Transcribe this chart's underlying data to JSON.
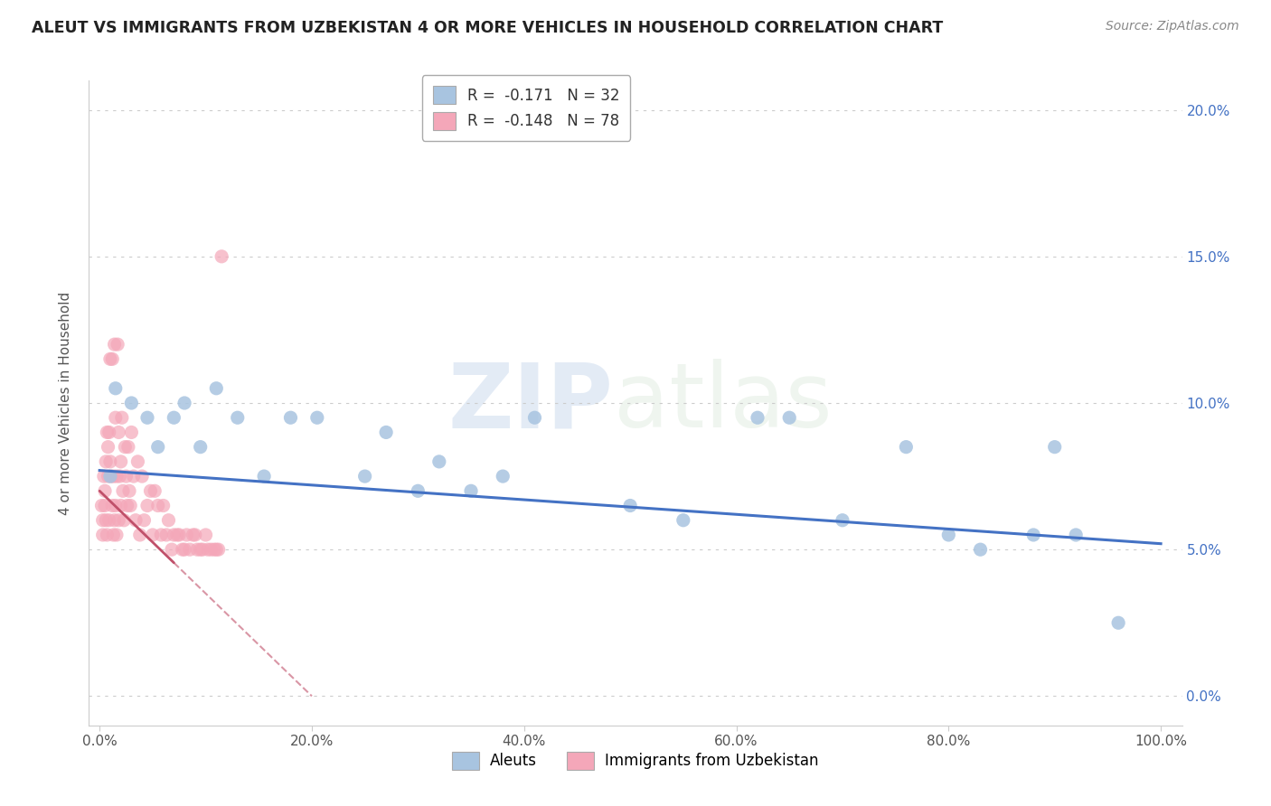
{
  "title": "ALEUT VS IMMIGRANTS FROM UZBEKISTAN 4 OR MORE VEHICLES IN HOUSEHOLD CORRELATION CHART",
  "source": "Source: ZipAtlas.com",
  "ylabel": "4 or more Vehicles in Household",
  "xlim": [
    0,
    100
  ],
  "ylim": [
    0,
    20
  ],
  "legend_label1": "R =  -0.171   N = 32",
  "legend_label2": "R =  -0.148   N = 78",
  "color_aleut": "#a8c4e0",
  "color_uzbek": "#f4a7b9",
  "trendline_aleut": "#4472c4",
  "trendline_uzbek": "#c0506a",
  "watermark_zip": "ZIP",
  "watermark_atlas": "atlas",
  "legend_items": [
    "Aleuts",
    "Immigrants from Uzbekistan"
  ],
  "aleut_x": [
    1.0,
    1.5,
    3.0,
    4.5,
    5.5,
    7.0,
    8.0,
    9.5,
    11.0,
    13.0,
    15.5,
    18.0,
    20.5,
    25.0,
    27.0,
    30.0,
    32.0,
    35.0,
    38.0,
    41.0,
    50.0,
    55.0,
    62.0,
    65.0,
    70.0,
    76.0,
    80.0,
    83.0,
    88.0,
    90.0,
    92.0,
    96.0
  ],
  "aleut_y": [
    7.5,
    10.5,
    10.0,
    9.5,
    8.5,
    9.5,
    10.0,
    8.5,
    10.5,
    9.5,
    7.5,
    9.5,
    9.5,
    7.5,
    9.0,
    7.0,
    8.0,
    7.0,
    7.5,
    9.5,
    6.5,
    6.0,
    9.5,
    9.5,
    6.0,
    8.5,
    5.5,
    5.0,
    5.5,
    8.5,
    5.5,
    2.5
  ],
  "uzbek_x": [
    0.2,
    0.3,
    0.3,
    0.4,
    0.5,
    0.5,
    0.6,
    0.6,
    0.7,
    0.7,
    0.8,
    0.8,
    0.9,
    0.9,
    1.0,
    1.0,
    1.1,
    1.2,
    1.2,
    1.3,
    1.3,
    1.4,
    1.4,
    1.5,
    1.5,
    1.6,
    1.6,
    1.7,
    1.8,
    1.8,
    1.9,
    2.0,
    2.0,
    2.1,
    2.2,
    2.3,
    2.4,
    2.5,
    2.6,
    2.7,
    2.8,
    2.9,
    3.0,
    3.2,
    3.4,
    3.6,
    3.8,
    4.0,
    4.2,
    4.5,
    4.8,
    5.0,
    5.2,
    5.5,
    5.8,
    6.0,
    6.3,
    6.5,
    6.8,
    7.0,
    7.3,
    7.5,
    7.8,
    8.0,
    8.2,
    8.5,
    8.8,
    9.0,
    9.2,
    9.5,
    9.7,
    10.0,
    10.2,
    10.5,
    10.8,
    11.0,
    11.2,
    11.5
  ],
  "uzbek_y": [
    6.5,
    5.5,
    6.0,
    7.5,
    7.0,
    6.5,
    6.0,
    8.0,
    9.0,
    5.5,
    8.5,
    7.5,
    9.0,
    6.0,
    8.0,
    11.5,
    7.5,
    6.5,
    11.5,
    7.5,
    5.5,
    6.0,
    12.0,
    6.5,
    9.5,
    7.5,
    5.5,
    12.0,
    6.0,
    9.0,
    7.5,
    8.0,
    6.5,
    9.5,
    7.0,
    6.0,
    8.5,
    7.5,
    6.5,
    8.5,
    7.0,
    6.5,
    9.0,
    7.5,
    6.0,
    8.0,
    5.5,
    7.5,
    6.0,
    6.5,
    7.0,
    5.5,
    7.0,
    6.5,
    5.5,
    6.5,
    5.5,
    6.0,
    5.0,
    5.5,
    5.5,
    5.5,
    5.0,
    5.0,
    5.5,
    5.0,
    5.5,
    5.5,
    5.0,
    5.0,
    5.0,
    5.5,
    5.0,
    5.0,
    5.0,
    5.0,
    5.0,
    15.0
  ],
  "aleut_trend_x0": 0,
  "aleut_trend_y0": 7.7,
  "aleut_trend_x1": 100,
  "aleut_trend_y1": 5.2,
  "uzbek_trend_x0": 0,
  "uzbek_trend_y0": 7.0,
  "uzbek_trend_x1": 20,
  "uzbek_trend_y1": 0.0
}
